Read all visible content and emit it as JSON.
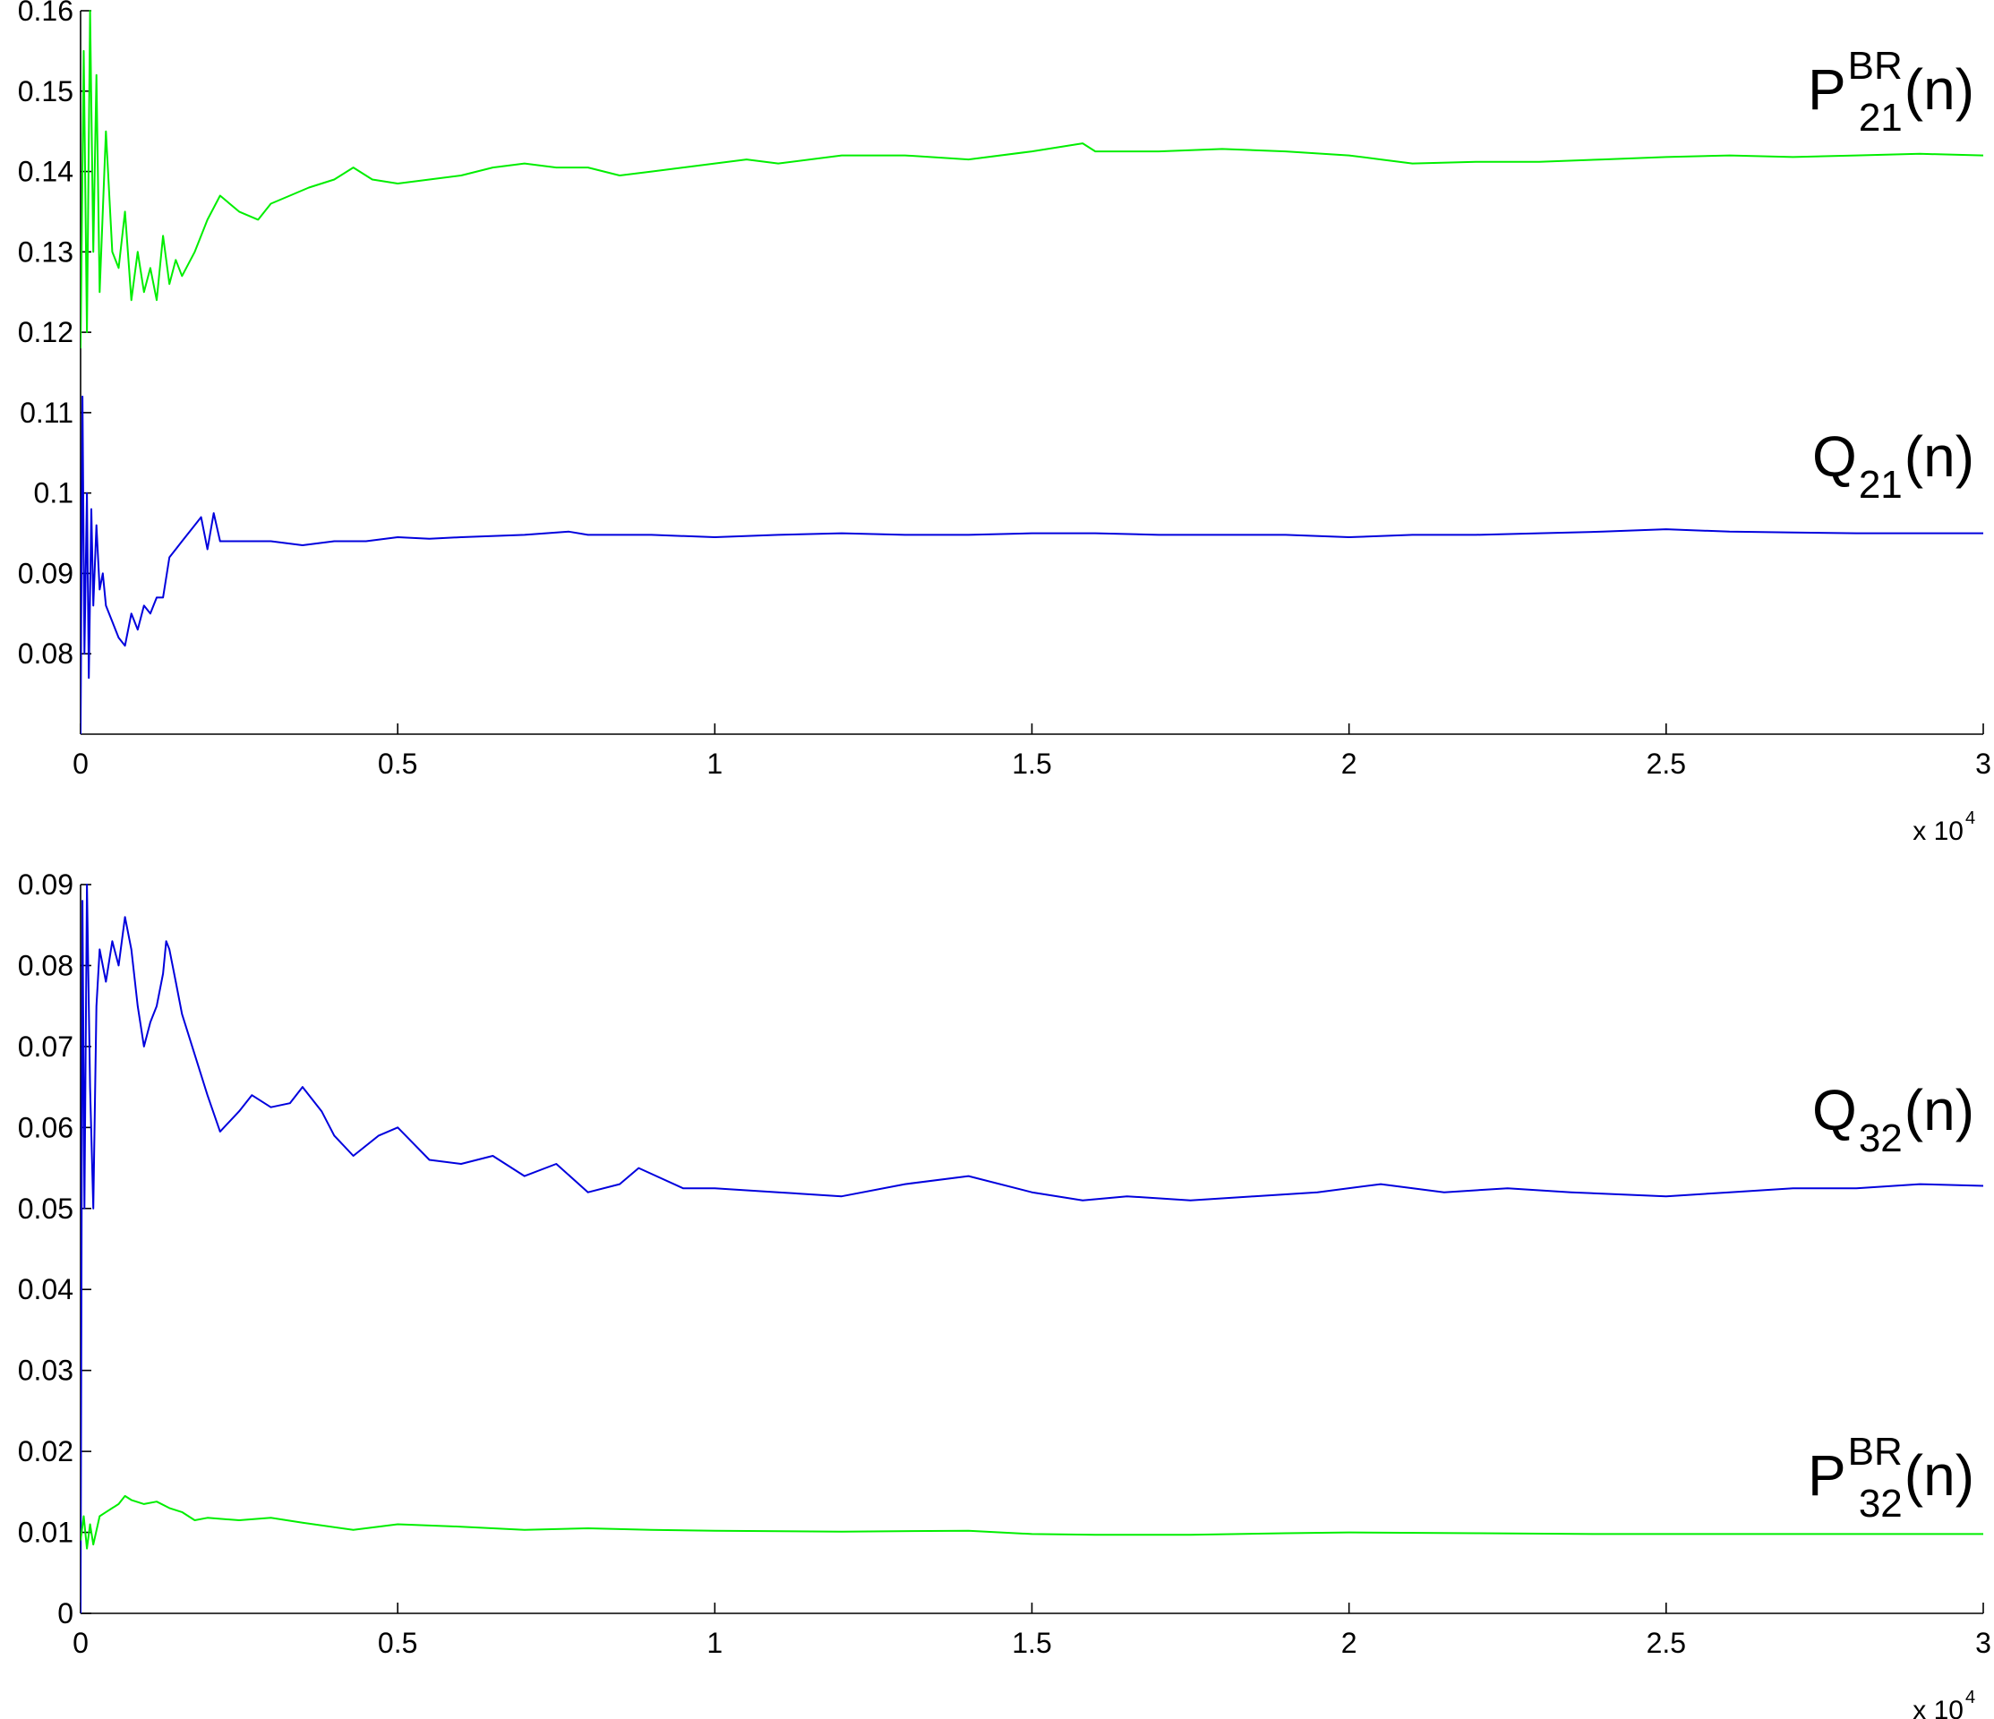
{
  "chart_data": [
    {
      "type": "line",
      "x_multiplier_label": {
        "base": "x 10",
        "exponent": "4"
      },
      "xlim": [
        0,
        3
      ],
      "ylim": [
        0.07,
        0.16
      ],
      "x_ticks": [
        "0",
        "0.5",
        "1",
        "1.5",
        "2",
        "2.5",
        "3"
      ],
      "y_ticks": [
        "0.08",
        "0.09",
        "0.1",
        "0.11",
        "0.12",
        "0.13",
        "0.14",
        "0.15",
        "0.16"
      ],
      "grid": false,
      "series": [
        {
          "color": "#00ee00",
          "label": {
            "main": "P",
            "sup": "BR",
            "sub": "21",
            "suffix": "(n)"
          },
          "x": [
            0,
            0.005,
            0.01,
            0.015,
            0.02,
            0.025,
            0.03,
            0.04,
            0.05,
            0.06,
            0.07,
            0.08,
            0.09,
            0.1,
            0.11,
            0.12,
            0.13,
            0.14,
            0.15,
            0.16,
            0.18,
            0.2,
            0.22,
            0.25,
            0.28,
            0.3,
            0.33,
            0.36,
            0.4,
            0.43,
            0.46,
            0.5,
            0.55,
            0.6,
            0.65,
            0.7,
            0.75,
            0.8,
            0.85,
            0.9,
            0.95,
            1.0,
            1.05,
            1.1,
            1.2,
            1.3,
            1.4,
            1.5,
            1.58,
            1.6,
            1.7,
            1.8,
            1.9,
            2.0,
            2.05,
            2.1,
            2.2,
            2.3,
            2.4,
            2.5,
            2.6,
            2.7,
            2.8,
            2.9,
            3.0
          ],
          "y": [
            0.118,
            0.155,
            0.12,
            0.16,
            0.13,
            0.152,
            0.125,
            0.145,
            0.13,
            0.128,
            0.135,
            0.124,
            0.13,
            0.125,
            0.128,
            0.124,
            0.132,
            0.126,
            0.129,
            0.127,
            0.13,
            0.134,
            0.137,
            0.135,
            0.134,
            0.136,
            0.137,
            0.138,
            0.139,
            0.1405,
            0.139,
            0.1385,
            0.139,
            0.1395,
            0.1405,
            0.141,
            0.1405,
            0.1405,
            0.1395,
            0.14,
            0.1405,
            0.141,
            0.1415,
            0.141,
            0.142,
            0.142,
            0.1415,
            0.1425,
            0.1435,
            0.1425,
            0.1425,
            0.1428,
            0.1425,
            0.142,
            0.1415,
            0.141,
            0.1412,
            0.1412,
            0.1415,
            0.1418,
            0.142,
            0.1418,
            0.142,
            0.1422,
            0.142
          ]
        },
        {
          "color": "#0000dd",
          "label": {
            "main": "Q",
            "sup": "",
            "sub": "21",
            "suffix": "(n)"
          },
          "x": [
            0,
            0.003,
            0.006,
            0.01,
            0.013,
            0.017,
            0.02,
            0.025,
            0.03,
            0.035,
            0.04,
            0.05,
            0.06,
            0.07,
            0.08,
            0.09,
            0.1,
            0.11,
            0.12,
            0.13,
            0.14,
            0.15,
            0.16,
            0.18,
            0.19,
            0.2,
            0.21,
            0.22,
            0.25,
            0.3,
            0.35,
            0.4,
            0.45,
            0.5,
            0.55,
            0.6,
            0.7,
            0.77,
            0.8,
            0.9,
            1.0,
            1.1,
            1.2,
            1.3,
            1.4,
            1.5,
            1.6,
            1.7,
            1.8,
            1.9,
            2.0,
            2.1,
            2.2,
            2.3,
            2.4,
            2.5,
            2.6,
            2.7,
            2.8,
            2.9,
            3.0
          ],
          "y": [
            0.07,
            0.112,
            0.08,
            0.1,
            0.077,
            0.098,
            0.086,
            0.096,
            0.088,
            0.09,
            0.086,
            0.084,
            0.082,
            0.081,
            0.085,
            0.083,
            0.086,
            0.085,
            0.087,
            0.087,
            0.092,
            0.093,
            0.094,
            0.096,
            0.097,
            0.093,
            0.0975,
            0.094,
            0.094,
            0.094,
            0.0935,
            0.094,
            0.094,
            0.0945,
            0.0943,
            0.0945,
            0.0948,
            0.0952,
            0.0948,
            0.0948,
            0.0945,
            0.0948,
            0.095,
            0.0948,
            0.0948,
            0.095,
            0.095,
            0.0948,
            0.0948,
            0.0948,
            0.0945,
            0.0948,
            0.0948,
            0.095,
            0.0952,
            0.0955,
            0.0952,
            0.0951,
            0.095,
            0.095,
            0.095
          ]
        }
      ]
    },
    {
      "type": "line",
      "x_multiplier_label": {
        "base": "x 10",
        "exponent": "4"
      },
      "xlim": [
        0,
        3
      ],
      "ylim": [
        0,
        0.09
      ],
      "x_ticks": [
        "0",
        "0.5",
        "1",
        "1.5",
        "2",
        "2.5",
        "3"
      ],
      "y_ticks": [
        "0",
        "0.01",
        "0.02",
        "0.03",
        "0.04",
        "0.05",
        "0.06",
        "0.07",
        "0.08",
        "0.09"
      ],
      "grid": false,
      "series": [
        {
          "color": "#0000dd",
          "label": {
            "main": "Q",
            "sup": "",
            "sub": "32",
            "suffix": "(n)"
          },
          "x": [
            0,
            0.003,
            0.006,
            0.01,
            0.015,
            0.02,
            0.025,
            0.03,
            0.04,
            0.05,
            0.06,
            0.07,
            0.08,
            0.09,
            0.1,
            0.11,
            0.12,
            0.13,
            0.135,
            0.14,
            0.15,
            0.16,
            0.18,
            0.2,
            0.22,
            0.25,
            0.27,
            0.3,
            0.33,
            0.35,
            0.38,
            0.4,
            0.43,
            0.47,
            0.5,
            0.55,
            0.6,
            0.65,
            0.7,
            0.75,
            0.8,
            0.85,
            0.88,
            0.95,
            1.0,
            1.1,
            1.2,
            1.3,
            1.4,
            1.5,
            1.58,
            1.65,
            1.75,
            1.85,
            1.95,
            2.05,
            2.15,
            2.25,
            2.35,
            2.5,
            2.6,
            2.7,
            2.8,
            2.9,
            3.0
          ],
          "y": [
            0.0,
            0.088,
            0.05,
            0.09,
            0.065,
            0.05,
            0.075,
            0.082,
            0.078,
            0.083,
            0.08,
            0.086,
            0.082,
            0.075,
            0.07,
            0.073,
            0.075,
            0.079,
            0.083,
            0.082,
            0.078,
            0.074,
            0.069,
            0.064,
            0.0595,
            0.062,
            0.064,
            0.0625,
            0.063,
            0.065,
            0.062,
            0.059,
            0.0565,
            0.059,
            0.06,
            0.056,
            0.0555,
            0.0565,
            0.054,
            0.0555,
            0.052,
            0.053,
            0.055,
            0.0525,
            0.0525,
            0.052,
            0.0515,
            0.053,
            0.054,
            0.052,
            0.051,
            0.0515,
            0.051,
            0.0515,
            0.052,
            0.053,
            0.052,
            0.0525,
            0.052,
            0.0515,
            0.052,
            0.0525,
            0.0525,
            0.053,
            0.0528
          ]
        },
        {
          "color": "#00ee00",
          "label": {
            "main": "P",
            "sup": "BR",
            "sub": "32",
            "suffix": "(n)"
          },
          "x": [
            0,
            0.005,
            0.01,
            0.015,
            0.02,
            0.03,
            0.04,
            0.05,
            0.06,
            0.07,
            0.08,
            0.1,
            0.12,
            0.14,
            0.16,
            0.18,
            0.2,
            0.25,
            0.3,
            0.35,
            0.43,
            0.5,
            0.6,
            0.7,
            0.8,
            0.9,
            1.0,
            1.2,
            1.4,
            1.5,
            1.6,
            1.75,
            1.9,
            2.0,
            2.2,
            2.4,
            2.6,
            2.8,
            3.0
          ],
          "y": [
            0.009,
            0.012,
            0.008,
            0.011,
            0.0085,
            0.012,
            0.0125,
            0.013,
            0.0135,
            0.0145,
            0.014,
            0.0135,
            0.0138,
            0.013,
            0.0125,
            0.0115,
            0.0118,
            0.0115,
            0.0118,
            0.0112,
            0.0103,
            0.011,
            0.0107,
            0.0103,
            0.0105,
            0.0103,
            0.0102,
            0.0101,
            0.0102,
            0.0098,
            0.0097,
            0.0097,
            0.0099,
            0.01,
            0.0099,
            0.0098,
            0.0098,
            0.0098,
            0.0098
          ]
        }
      ]
    }
  ]
}
